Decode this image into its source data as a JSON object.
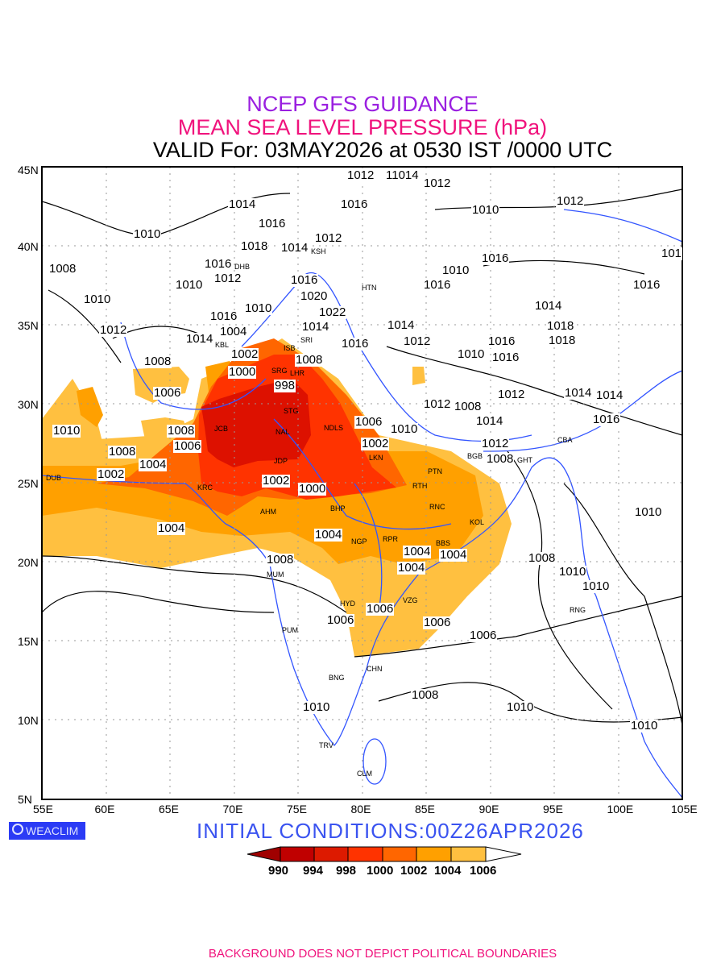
{
  "title": {
    "line1": "NCEP GFS GUIDANCE",
    "line2": "MEAN SEA LEVEL PRESSURE (hPa)",
    "line3": "VALID For: 03MAY2026 at 0530 IST /0000 UTC"
  },
  "axes": {
    "lat_labels": [
      "45N",
      "40N",
      "35N",
      "30N",
      "25N",
      "20N",
      "15N",
      "10N",
      "5N"
    ],
    "lon_labels": [
      "55E",
      "60E",
      "65E",
      "70E",
      "75E",
      "80E",
      "85E",
      "90E",
      "95E",
      "100E",
      "105E"
    ]
  },
  "logo": "WEACLIM",
  "initial_conditions": "INITIAL  CONDITIONS:00Z26APR2026",
  "colorbar": {
    "labels": [
      "990",
      "994",
      "998",
      "1000",
      "1002",
      "1004",
      "1006"
    ],
    "colors": [
      "#a00000",
      "#c00000",
      "#dd1a00",
      "#ff3300",
      "#ff6600",
      "#ffa000",
      "#ffc040"
    ]
  },
  "footer": "BACKGROUND DOES NOT DEPICT POLITICAL BOUNDARIES",
  "contour_labels": [
    "1012",
    "11014",
    "1012",
    "1010",
    "1012",
    "1014",
    "1016",
    "1016",
    "1010",
    "1018",
    "1014",
    "1012",
    "1010",
    "1008",
    "1016",
    "1012",
    "1010",
    "1016",
    "1016",
    "1020",
    "1022",
    "1010",
    "1016",
    "1004",
    "1014",
    "1012",
    "1014",
    "1016",
    "1014",
    "1002",
    "1000",
    "998",
    "1008",
    "1016",
    "1018",
    "1012",
    "1014",
    "1010",
    "1006",
    "1002",
    "1004",
    "1008",
    "1008",
    "1006",
    "1006",
    "1010",
    "1008",
    "1004",
    "1002",
    "1002",
    "1000",
    "1004",
    "1004",
    "1004",
    "1004",
    "1008",
    "1006",
    "1006",
    "1006",
    "1006",
    "1008",
    "1008",
    "1010",
    "1010",
    "1010",
    "1010",
    "1010",
    "1010",
    "1010",
    "1016",
    "1014",
    "1016",
    "1018",
    "1014",
    "1016",
    "1016",
    "1012",
    "1014",
    "1012",
    "1012",
    "1008",
    "1010",
    "1008",
    "101"
  ],
  "cities": [
    "DUB",
    "KRC",
    "JCB",
    "NAL",
    "SRG",
    "LHR",
    "STG",
    "JDP",
    "NDLS",
    "LKN",
    "PTN",
    "RTH",
    "RNC",
    "KOL",
    "AHM",
    "BHP",
    "NGP",
    "RPR",
    "BBS",
    "MUM",
    "HYD",
    "VZG",
    "PUM",
    "BNG",
    "CHN",
    "TRV",
    "CLM",
    "KSH",
    "HTN",
    "DHB",
    "KBL",
    "ISB",
    "GHT",
    "CBA",
    "BGB",
    "RNG",
    "SRI"
  ]
}
